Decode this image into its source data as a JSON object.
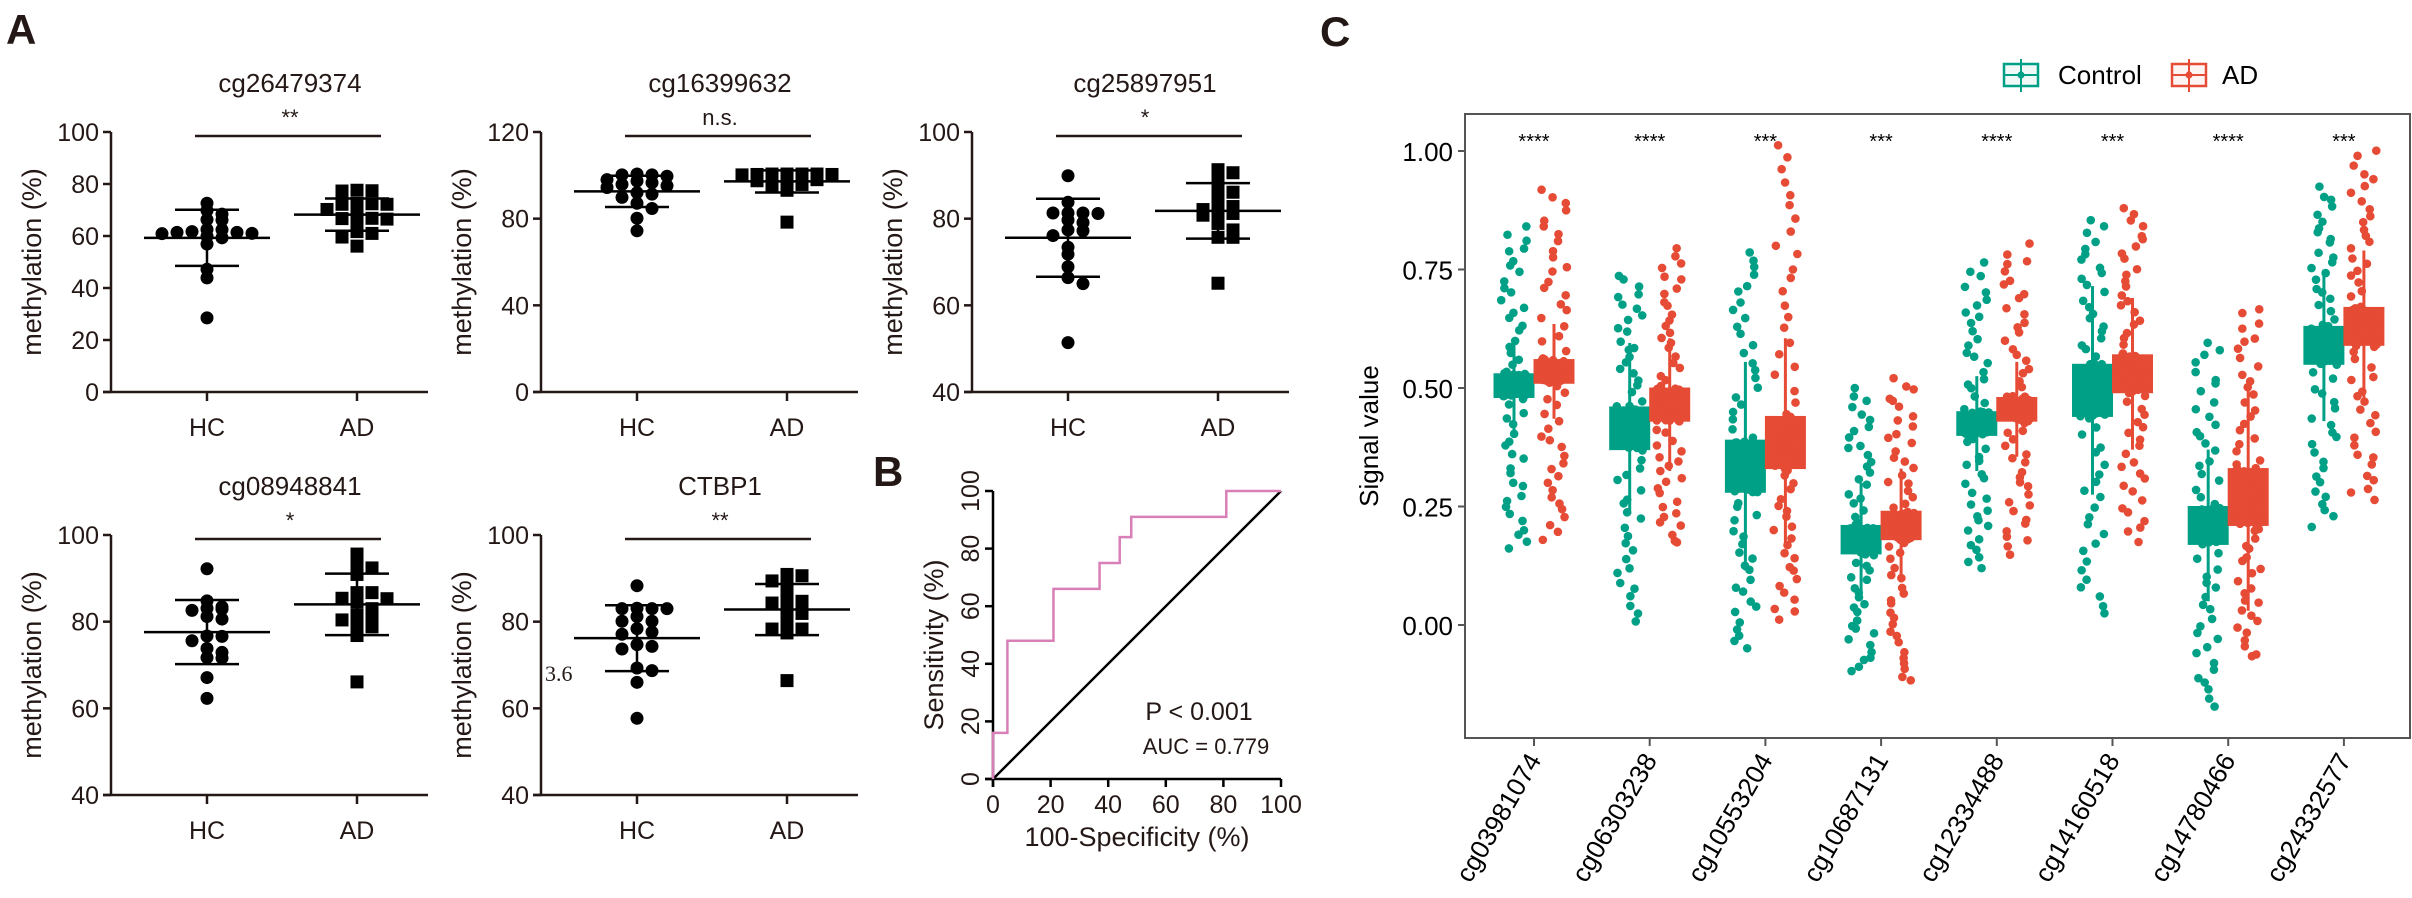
{
  "panel_letters": {
    "a": "A",
    "b": "B",
    "c": "C"
  },
  "stray_label": "3.6",
  "chart_data": [
    {
      "type": "scatter",
      "panel": "A",
      "title": "cg26479374",
      "significance": "**",
      "ylabel": "methylation (%)",
      "categories": [
        "HC",
        "AD"
      ],
      "ylim": [
        0,
        100
      ],
      "yticks": [
        0,
        20,
        40,
        60,
        80,
        100
      ],
      "series": [
        {
          "name": "HC",
          "marker": "circle",
          "mean": 59.3,
          "sd": 10.8,
          "values": [
            72.6,
            69.8,
            68.4,
            66.3,
            66.1,
            62.4,
            62.5,
            61.4,
            61.4,
            60.9,
            61.0,
            61.7,
            59.3,
            59.9,
            56.9,
            47.2,
            43.9,
            28.5
          ]
        },
        {
          "name": "AD",
          "marker": "square",
          "mean": 68.2,
          "sd": 6.2,
          "values": [
            77.6,
            77.4,
            77.3,
            72.5,
            72.2,
            72.2,
            72.4,
            70.2,
            69.0,
            66.7,
            66.8,
            66.5,
            64.6,
            61.7,
            61.0,
            59.6,
            56.1
          ]
        }
      ]
    },
    {
      "type": "scatter",
      "panel": "A",
      "title": "cg16399632",
      "significance": "n.s.",
      "ylabel": "methylation (%)",
      "categories": [
        "HC",
        "AD"
      ],
      "ylim": [
        0,
        120
      ],
      "yticks": [
        0,
        40,
        80,
        120
      ],
      "series": [
        {
          "name": "HC",
          "marker": "circle",
          "mean": 92.6,
          "sd": 7.2,
          "values": [
            99.6,
            100.2,
            100.2,
            100.6,
            98.0,
            97.4,
            96.6,
            95.8,
            95.2,
            94.4,
            92.0,
            91.3,
            89.8,
            87.1,
            84.7,
            80.2,
            74.4
          ]
        },
        {
          "name": "AD",
          "marker": "square",
          "mean": 97.2,
          "sd": 5.1,
          "values": [
            100.6,
            100.6,
            100.6,
            100.6,
            100.4,
            100.4,
            100.2,
            99.9,
            99.2,
            98.9,
            98.0,
            97.5,
            96.4,
            95.8,
            94.6,
            93.1,
            78.4
          ]
        }
      ]
    },
    {
      "type": "scatter",
      "panel": "A",
      "title": "cg25897951",
      "significance": "*",
      "ylabel": "methylation (%)",
      "categories": [
        "HC",
        "AD"
      ],
      "ylim": [
        40,
        100
      ],
      "yticks": [
        40,
        60,
        80,
        100
      ],
      "series": [
        {
          "name": "HC",
          "marker": "circle",
          "mean": 75.6,
          "sd": 9.0,
          "values": [
            89.9,
            83.8,
            81.3,
            81.3,
            81.3,
            81.2,
            79.7,
            79.1,
            77.4,
            77.2,
            76.1,
            73.4,
            71.8,
            68.9,
            66.4,
            65.0,
            51.4
          ]
        },
        {
          "name": "AD",
          "marker": "square",
          "mean": 81.8,
          "sd": 6.4,
          "values": [
            91.3,
            90.6,
            89.4,
            86.7,
            86.1,
            84.5,
            82.8,
            82.9,
            82.1,
            81.2,
            81.2,
            80.8,
            78.9,
            77.4,
            75.7,
            75.7,
            65.1
          ]
        }
      ]
    },
    {
      "type": "scatter",
      "panel": "A",
      "title": "cg08948841",
      "significance": "*",
      "ylabel": "methylation (%)",
      "categories": [
        "HC",
        "AD"
      ],
      "ylim": [
        40,
        100
      ],
      "yticks": [
        40,
        60,
        80,
        100
      ],
      "series": [
        {
          "name": "HC",
          "marker": "circle",
          "mean": 77.6,
          "sd": 7.4,
          "values": [
            92.2,
            84.8,
            83.1,
            83.4,
            82.6,
            82.9,
            81.2,
            80.6,
            76.6,
            76.7,
            75.6,
            73.8,
            72.9,
            71.7,
            71.6,
            67.1,
            62.3
          ]
        },
        {
          "name": "AD",
          "marker": "square",
          "mean": 84.0,
          "sd": 7.1,
          "values": [
            95.6,
            93.6,
            92.4,
            90.9,
            86.7,
            86.7,
            85.4,
            85.3,
            84.5,
            83.0,
            81.5,
            80.6,
            80.4,
            79.5,
            78.8,
            76.8,
            66.1
          ]
        }
      ]
    },
    {
      "type": "scatter",
      "panel": "A",
      "title": "CTBP1",
      "significance": "**",
      "ylabel": "methylation (%)",
      "categories": [
        "HC",
        "AD"
      ],
      "ylim": [
        40,
        100
      ],
      "yticks": [
        40,
        60,
        80,
        100
      ],
      "series": [
        {
          "name": "HC",
          "marker": "circle",
          "mean": 76.2,
          "sd": 7.6,
          "values": [
            88.3,
            83.1,
            83.0,
            83.0,
            83.0,
            81.2,
            80.1,
            80.1,
            78.4,
            77.1,
            77.6,
            74.7,
            74.3,
            73.7,
            68.7,
            69.3,
            66.0,
            57.7
          ]
        },
        {
          "name": "AD",
          "marker": "square",
          "mean": 82.8,
          "sd": 5.9,
          "values": [
            90.9,
            90.6,
            89.4,
            88.3,
            85.6,
            84.7,
            84.3,
            83.6,
            83.5,
            82.0,
            81.9,
            79.1,
            78.3,
            78.3,
            77.4,
            66.4
          ]
        }
      ]
    },
    {
      "type": "line",
      "panel": "B",
      "xlabel": "100-Specificity (%)",
      "ylabel": "Sensitivity (%)",
      "xlim": [
        0,
        100
      ],
      "ylim": [
        0,
        100
      ],
      "xticks": [
        0,
        20,
        40,
        60,
        80,
        100
      ],
      "yticks": [
        0,
        20,
        40,
        60,
        80,
        100
      ],
      "annotations": [
        "P < 0.001",
        "AUC = 0.779"
      ],
      "series": [
        {
          "name": "ROC",
          "color": "#d97fb8",
          "x": [
            0,
            0,
            5,
            5,
            21,
            21,
            37,
            37,
            44,
            44,
            48,
            48,
            81,
            81,
            100
          ],
          "y": [
            0,
            16,
            16,
            48,
            48,
            66,
            66,
            75,
            75,
            84,
            84,
            91,
            91,
            100,
            100
          ]
        },
        {
          "name": "Reference",
          "color": "#000000",
          "x": [
            0,
            100
          ],
          "y": [
            0,
            100
          ]
        }
      ]
    },
    {
      "type": "box",
      "panel": "C",
      "ylabel": "Signal value",
      "ylim": [
        -0.24,
        1.08
      ],
      "yticks": [
        0.0,
        0.25,
        0.5,
        0.75,
        1.0
      ],
      "ytick_labels": [
        "0.00",
        "0.25",
        "0.50",
        "0.75",
        "1.00"
      ],
      "legend": {
        "position": "top",
        "entries": [
          {
            "name": "Control",
            "color": "#00a087"
          },
          {
            "name": "AD",
            "color": "#e64b35"
          }
        ]
      },
      "categories": [
        "cg03981074",
        "cg06303238",
        "cg10553204",
        "cg10687131",
        "cg12334488",
        "cg14160518",
        "cg14780466",
        "cg24332577"
      ],
      "significance": [
        "****",
        "****",
        "***",
        "***",
        "****",
        "***",
        "****",
        "***"
      ],
      "series": [
        {
          "name": "Control",
          "color": "#00a087",
          "q1": [
            0.48,
            0.37,
            0.28,
            0.15,
            0.4,
            0.44,
            0.17,
            0.55
          ],
          "median": [
            0.51,
            0.42,
            0.33,
            0.18,
            0.43,
            0.5,
            0.21,
            0.61
          ],
          "q3": [
            0.53,
            0.46,
            0.39,
            0.21,
            0.45,
            0.55,
            0.25,
            0.63
          ],
          "min": [
            0.16,
            0.01,
            -0.05,
            -0.1,
            0.12,
            0.02,
            -0.17,
            0.21
          ],
          "max": [
            0.84,
            0.74,
            0.79,
            0.5,
            0.76,
            0.85,
            0.6,
            0.92
          ]
        },
        {
          "name": "AD",
          "color": "#e64b35",
          "q1": [
            0.51,
            0.43,
            0.33,
            0.18,
            0.43,
            0.49,
            0.21,
            0.59
          ],
          "median": [
            0.54,
            0.46,
            0.38,
            0.2,
            0.46,
            0.53,
            0.27,
            0.64
          ],
          "q3": [
            0.56,
            0.5,
            0.44,
            0.24,
            0.48,
            0.57,
            0.33,
            0.67
          ],
          "min": [
            0.18,
            0.17,
            0.01,
            -0.12,
            0.15,
            0.18,
            -0.07,
            0.26
          ],
          "max": [
            0.92,
            0.79,
            1.01,
            0.52,
            0.8,
            0.88,
            0.67,
            1.0
          ]
        }
      ],
      "n_points_per_group": 90
    }
  ]
}
